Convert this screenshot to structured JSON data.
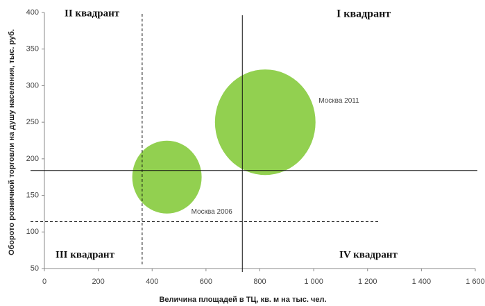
{
  "chart_data": {
    "type": "bubble",
    "x_label": "Величина площадей в ТЦ, кв. м на  тыс. чел.",
    "y_label": "Оборото розничной торговли на душу населения, тыс. руб.",
    "series": [
      {
        "name": "Москва 2006",
        "color": "#92d050",
        "x": [
          455
        ],
        "values": [
          175
        ],
        "sizes": [
          100
        ]
      },
      {
        "name": "Москва 2011",
        "color": "#92d050",
        "x": [
          820
        ],
        "values": [
          250
        ],
        "sizes": [
          210
        ]
      }
    ],
    "xlim": [
      0,
      1600
    ],
    "ylim": [
      50,
      400
    ],
    "xticks": [
      0,
      200,
      400,
      600,
      800,
      {
        "value": 1000,
        "label": "1 000"
      },
      {
        "value": 1200,
        "label": "1 200"
      },
      {
        "value": 1400,
        "label": "1 400"
      },
      {
        "value": 1600,
        "label": "1 600"
      }
    ],
    "yticks": [
      50,
      100,
      150,
      200,
      250,
      300,
      350,
      400
    ],
    "reference_lines": [
      {
        "x": 735,
        "style": "solid"
      },
      {
        "y": 184,
        "style": "solid"
      },
      {
        "x": 363,
        "style": "dashed"
      },
      {
        "y": 114,
        "style": "dashed",
        "x_end": 1240
      }
    ],
    "annotations": [
      "I квадрант",
      "II квадрант",
      "III квадрант",
      "IV квадрант"
    ]
  }
}
